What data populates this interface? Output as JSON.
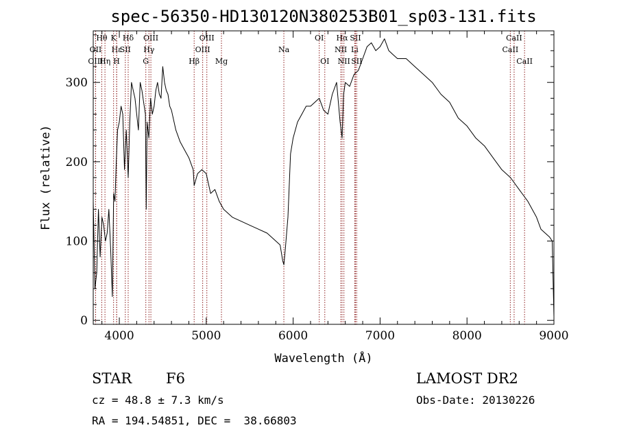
{
  "chart_data": {
    "type": "line",
    "title": "spec-56350-HD130120N380253B01_sp03-131.fits",
    "xlabel": "Wavelength (Å)",
    "ylabel": "Flux (relative)",
    "xlim": [
      3700,
      9000
    ],
    "ylim": [
      -5,
      365
    ],
    "xticks": [
      4000,
      5000,
      6000,
      7000,
      8000,
      9000
    ],
    "yticks": [
      0,
      100,
      200,
      300
    ],
    "grid": false,
    "line_color": "#000000",
    "marker_color": "#8b1a1a",
    "spectral_lines": [
      {
        "label": "Hθ",
        "x": 3798,
        "row": 0
      },
      {
        "label": "OII",
        "x": 3727,
        "row": 1
      },
      {
        "label": "OIII",
        "x": 3727,
        "row": 2
      },
      {
        "label": "Hε",
        "x": 3970,
        "row": 1
      },
      {
        "label": "Hη",
        "x": 3835,
        "row": 2
      },
      {
        "label": "K",
        "x": 3934,
        "row": 0
      },
      {
        "label": "H",
        "x": 3969,
        "row": 2
      },
      {
        "label": "SII",
        "x": 4069,
        "row": 1
      },
      {
        "label": "Hδ",
        "x": 4102,
        "row": 0
      },
      {
        "label": "OIII",
        "x": 4363,
        "row": 0
      },
      {
        "label": "Hγ",
        "x": 4341,
        "row": 1
      },
      {
        "label": "G",
        "x": 4305,
        "row": 2
      },
      {
        "label": "OIII",
        "x": 5007,
        "row": 0
      },
      {
        "label": "OIII",
        "x": 4959,
        "row": 1
      },
      {
        "label": "Hβ",
        "x": 4861,
        "row": 2
      },
      {
        "label": "Mg",
        "x": 5175,
        "row": 2
      },
      {
        "label": "Na",
        "x": 5893,
        "row": 1
      },
      {
        "label": "OI",
        "x": 6300,
        "row": 0
      },
      {
        "label": "OI",
        "x": 6364,
        "row": 2
      },
      {
        "label": "Hα",
        "x": 6563,
        "row": 0
      },
      {
        "label": "NII",
        "x": 6548,
        "row": 1
      },
      {
        "label": "NII",
        "x": 6584,
        "row": 2
      },
      {
        "label": "SII",
        "x": 6717,
        "row": 0
      },
      {
        "label": "Li",
        "x": 6708,
        "row": 1
      },
      {
        "label": "SII",
        "x": 6731,
        "row": 2
      },
      {
        "label": "CaII",
        "x": 8542,
        "row": 0
      },
      {
        "label": "CaII",
        "x": 8498,
        "row": 1
      },
      {
        "label": "CaII",
        "x": 8662,
        "row": 2
      }
    ],
    "series": [
      {
        "x": [
          3700,
          3720,
          3740,
          3760,
          3780,
          3800,
          3820,
          3840,
          3860,
          3880,
          3900,
          3920,
          3935,
          3950,
          3965,
          3980,
          4000,
          4020,
          4040,
          4060,
          4080,
          4102,
          4120,
          4140,
          4160,
          4180,
          4200,
          4220,
          4240,
          4260,
          4280,
          4300,
          4310,
          4320,
          4340,
          4360,
          4380,
          4400,
          4420,
          4440,
          4460,
          4480,
          4500,
          4520,
          4540,
          4560,
          4580,
          4600,
          4650,
          4700,
          4750,
          4800,
          4850,
          4861,
          4900,
          4950,
          5000,
          5050,
          5100,
          5150,
          5200,
          5300,
          5400,
          5500,
          5600,
          5700,
          5800,
          5850,
          5880,
          5893,
          5910,
          5940,
          5970,
          6000,
          6050,
          6100,
          6150,
          6200,
          6250,
          6300,
          6350,
          6400,
          6450,
          6500,
          6540,
          6563,
          6580,
          6600,
          6650,
          6700,
          6750,
          6800,
          6850,
          6900,
          6950,
          7000,
          7050,
          7100,
          7150,
          7200,
          7300,
          7400,
          7500,
          7600,
          7700,
          7800,
          7900,
          8000,
          8100,
          8200,
          8300,
          8400,
          8500,
          8600,
          8700,
          8800,
          8850,
          8900,
          8950,
          8980,
          9000
        ],
        "y": [
          150,
          40,
          60,
          140,
          80,
          130,
          120,
          100,
          110,
          140,
          90,
          30,
          160,
          150,
          200,
          240,
          250,
          270,
          260,
          190,
          240,
          180,
          250,
          300,
          290,
          280,
          260,
          240,
          300,
          290,
          275,
          260,
          140,
          250,
          230,
          280,
          260,
          270,
          290,
          300,
          285,
          280,
          320,
          300,
          290,
          285,
          270,
          265,
          240,
          225,
          215,
          205,
          190,
          170,
          185,
          190,
          185,
          160,
          165,
          150,
          140,
          130,
          125,
          120,
          115,
          110,
          100,
          95,
          75,
          70,
          90,
          130,
          210,
          230,
          250,
          260,
          270,
          270,
          275,
          280,
          265,
          260,
          285,
          300,
          250,
          230,
          285,
          300,
          295,
          310,
          315,
          330,
          345,
          350,
          340,
          345,
          355,
          340,
          335,
          330,
          330,
          320,
          310,
          300,
          285,
          275,
          255,
          245,
          230,
          220,
          205,
          190,
          180,
          165,
          150,
          130,
          115,
          110,
          105,
          100,
          5
        ]
      }
    ]
  },
  "info": {
    "class_label": "STAR",
    "subclass": "F6",
    "survey": "LAMOST DR2",
    "cz": "cz = 48.8 ± 7.3 km/s",
    "obs_date": "Obs-Date: 20130226",
    "coords": "RA = 194.54851, DEC =  38.66803"
  }
}
